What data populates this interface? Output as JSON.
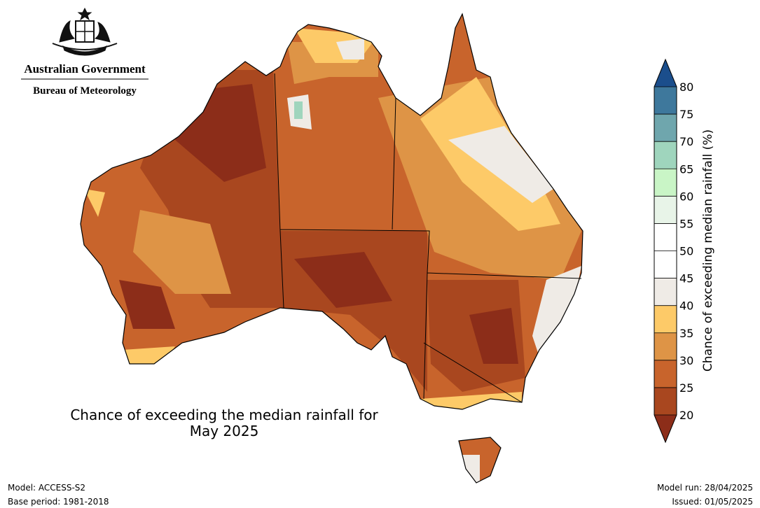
{
  "header": {
    "line1": "Australian Government",
    "line2": "Bureau of Meteorology"
  },
  "map": {
    "title_lines": [
      "Chance of exceeding the median rainfall for",
      "May 2025"
    ]
  },
  "colorbar": {
    "label": "Chance of exceeding median rainfall (%)",
    "ticks": [
      20,
      25,
      30,
      35,
      40,
      45,
      50,
      55,
      60,
      65,
      70,
      75,
      80
    ],
    "under_color": "#8c2d19",
    "bin_colors": [
      "#a9471f",
      "#c8642c",
      "#de9446",
      "#fdca68",
      "#efebe6",
      "#ffffff",
      "#ffffff",
      "#e8f4e8",
      "#c9f5c6",
      "#9fd5bd",
      "#6fa6ad",
      "#3e789c"
    ],
    "over_color": "#1b4e8c"
  },
  "footer": {
    "model": "Model: ACCESS-S2",
    "base": "Base period: 1981-2018",
    "run": "Model run: 28/04/2025",
    "issued": "Issued: 01/05/2025"
  }
}
